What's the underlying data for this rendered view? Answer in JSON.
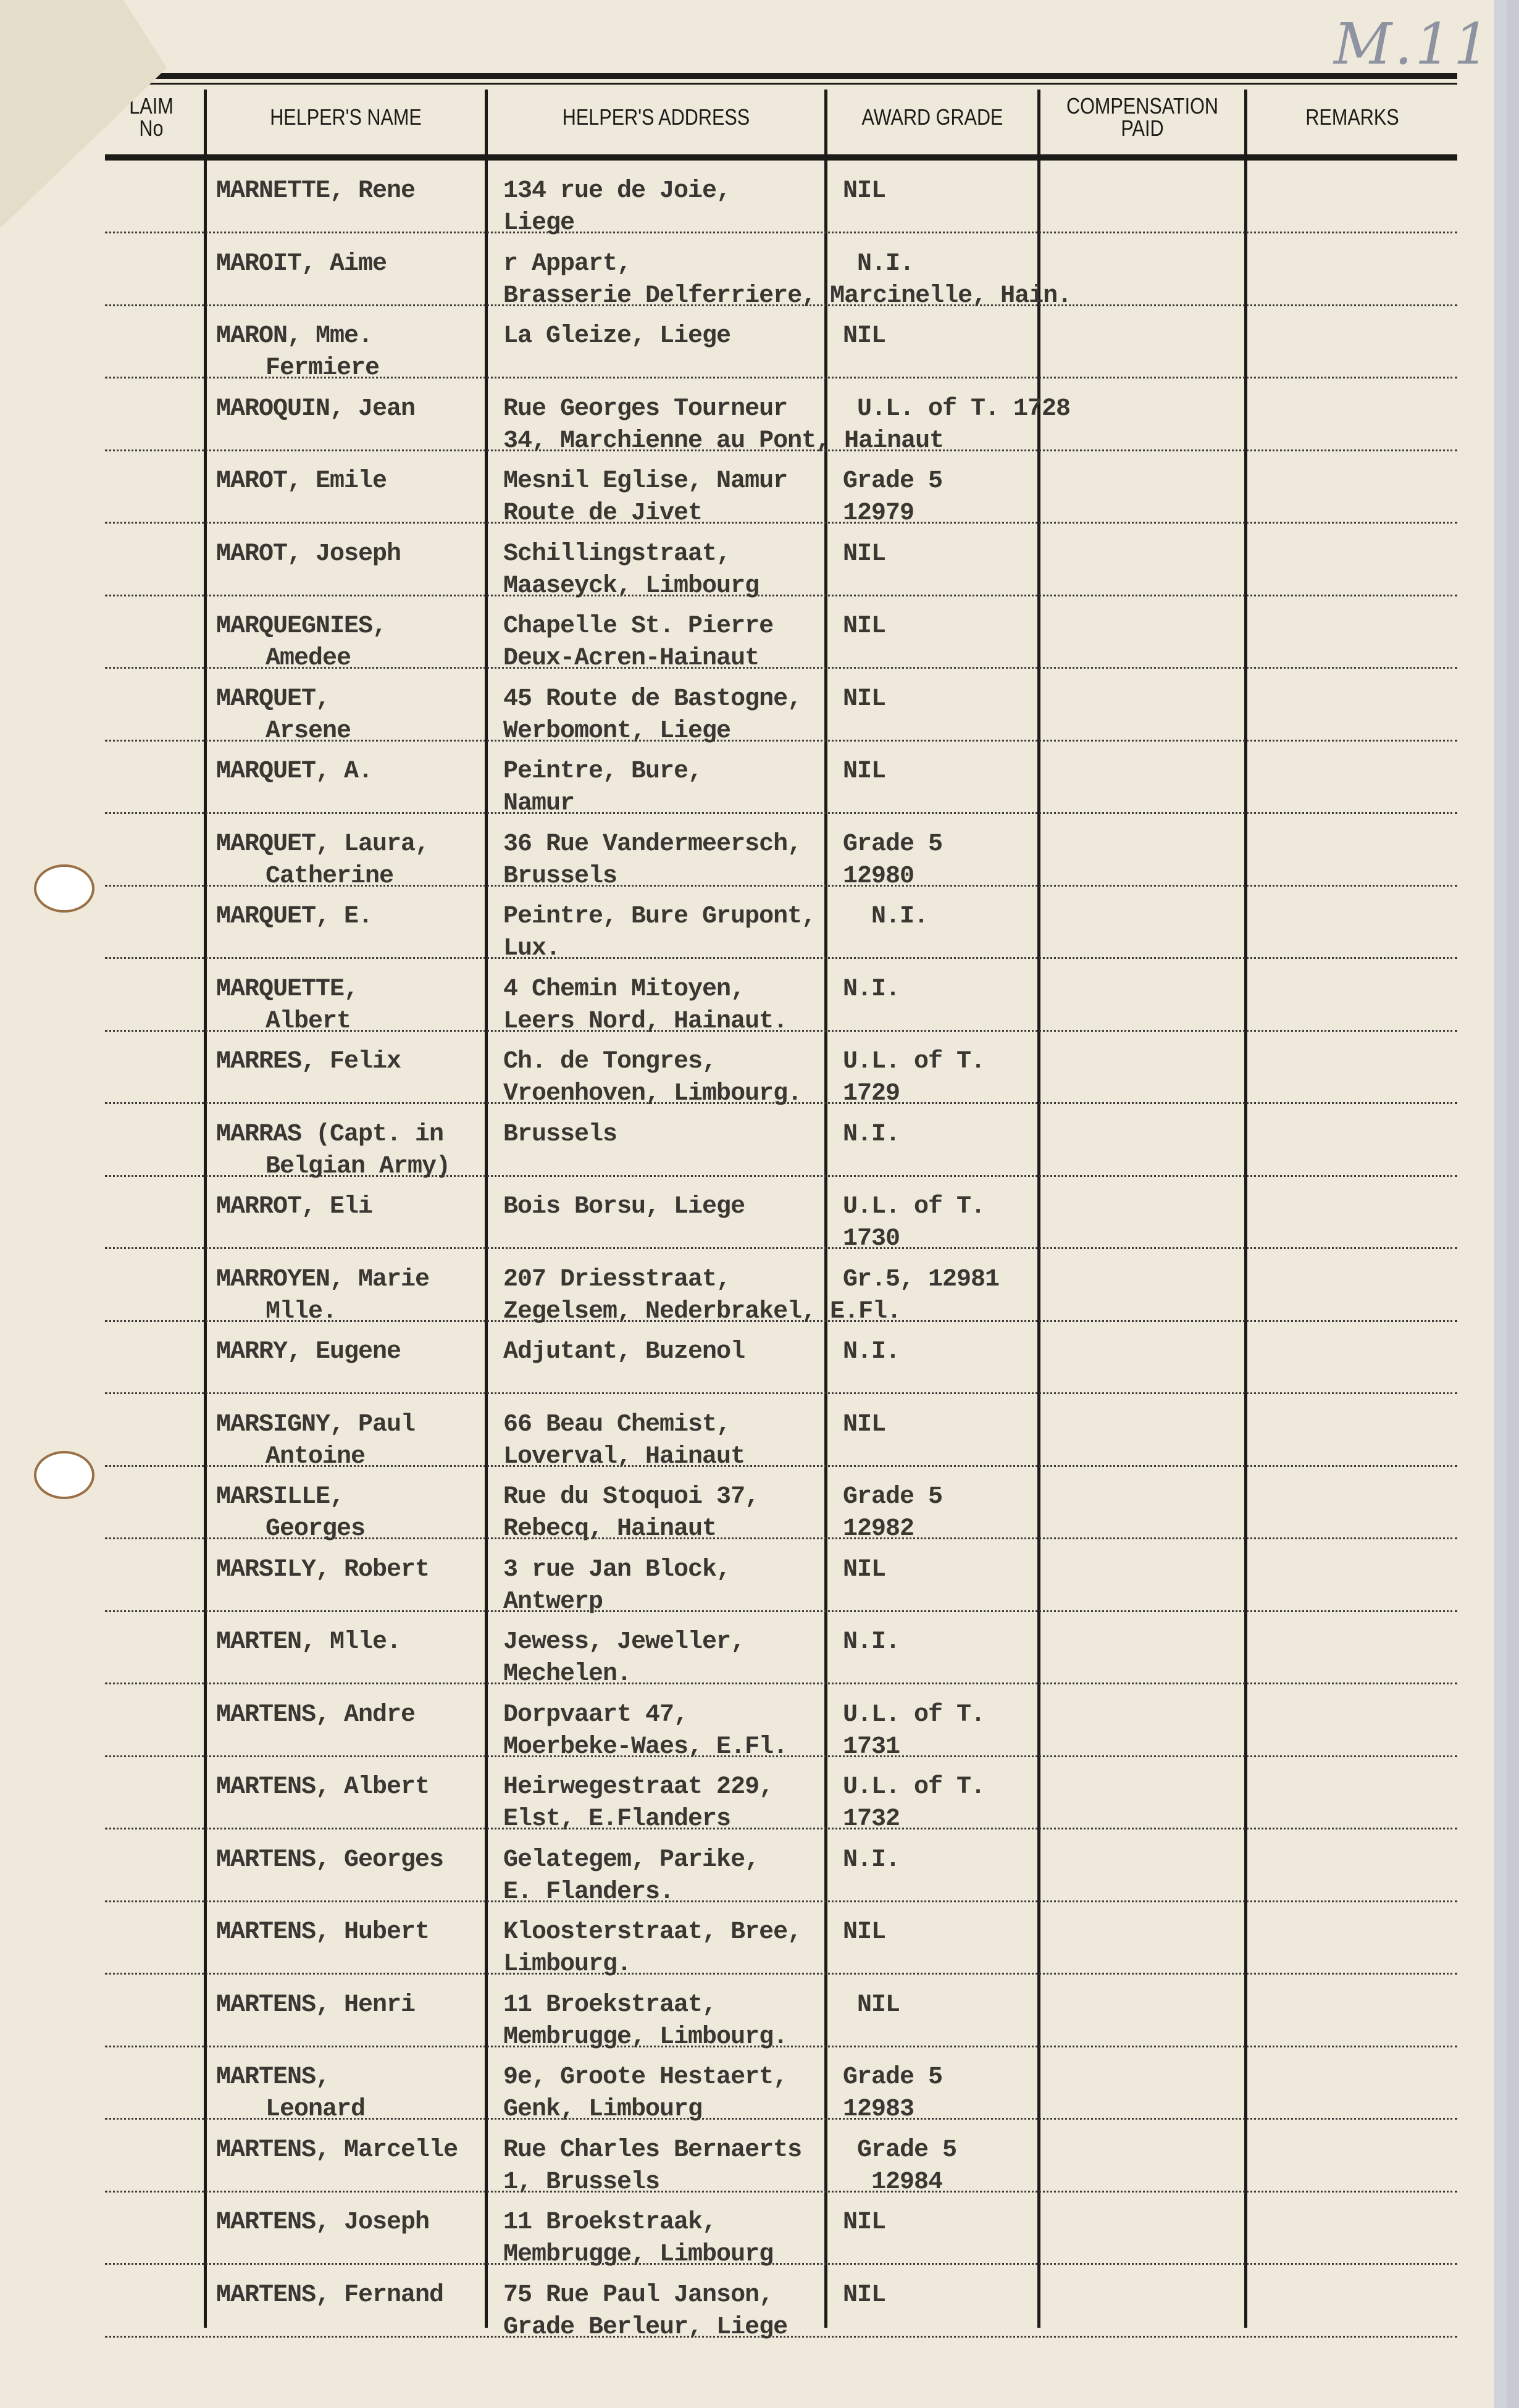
{
  "handwritten_mark": "M.11",
  "columns": {
    "claim": "LAIM\nNo",
    "name": "HELPER'S NAME",
    "address": "HELPER'S ADDRESS",
    "award": "AWARD GRADE",
    "compensation": "COMPENSATION\nPAID",
    "remarks": "REMARKS"
  },
  "rows": [
    {
      "name": [
        "MARNETTE, Rene"
      ],
      "address": [
        "134 rue de Joie,",
        "Liege"
      ],
      "award": [
        "NIL"
      ]
    },
    {
      "name": [
        "MAROIT, Aime"
      ],
      "address": [
        "r Appart,",
        "Brasserie Delferriere, Marcinelle, Hain."
      ],
      "award": [
        " N.I."
      ]
    },
    {
      "name": [
        "MARON, Mme.",
        "Fermiere"
      ],
      "address": [
        "La Gleize, Liege"
      ],
      "award": [
        "NIL"
      ]
    },
    {
      "name": [
        "MAROQUIN, Jean"
      ],
      "address": [
        "Rue Georges Tourneur",
        "34, Marchienne au Pont, Hainaut"
      ],
      "award": [
        " U.L. of T. 1728"
      ]
    },
    {
      "name": [
        "MAROT, Emile"
      ],
      "address": [
        "Mesnil Eglise, Namur",
        "Route de Jivet"
      ],
      "award": [
        "Grade 5",
        "12979"
      ]
    },
    {
      "name": [
        "MAROT, Joseph"
      ],
      "address": [
        "Schillingstraat,",
        "Maaseyck, Limbourg"
      ],
      "award": [
        "NIL"
      ]
    },
    {
      "name": [
        "MARQUEGNIES,",
        "Amedee"
      ],
      "address": [
        "Chapelle St. Pierre",
        "Deux-Acren-Hainaut"
      ],
      "award": [
        "NIL"
      ]
    },
    {
      "name": [
        "MARQUET,",
        "Arsene"
      ],
      "address": [
        "45 Route de Bastogne,",
        "Werbomont, Liege"
      ],
      "award": [
        "NIL"
      ]
    },
    {
      "name": [
        "MARQUET, A."
      ],
      "address": [
        "Peintre, Bure,",
        "Namur"
      ],
      "award": [
        "NIL"
      ]
    },
    {
      "name": [
        "MARQUET, Laura,",
        "Catherine"
      ],
      "address": [
        "36 Rue Vandermeersch,",
        "Brussels"
      ],
      "award": [
        "Grade 5",
        "12980"
      ]
    },
    {
      "name": [
        "MARQUET, E."
      ],
      "address": [
        "Peintre, Bure Grupont,",
        "Lux."
      ],
      "award": [
        "  N.I."
      ]
    },
    {
      "name": [
        "MARQUETTE,",
        "Albert"
      ],
      "address": [
        "4 Chemin Mitoyen,",
        "Leers Nord, Hainaut."
      ],
      "award": [
        "N.I."
      ]
    },
    {
      "name": [
        "MARRES, Felix"
      ],
      "address": [
        "Ch. de Tongres,",
        "Vroenhoven, Limbourg."
      ],
      "award": [
        "U.L. of T.",
        "1729"
      ]
    },
    {
      "name": [
        "MARRAS (Capt. in",
        "Belgian Army)"
      ],
      "address": [
        "Brussels"
      ],
      "award": [
        "N.I."
      ]
    },
    {
      "name": [
        "MARROT, Eli"
      ],
      "address": [
        "Bois Borsu, Liege"
      ],
      "award": [
        "U.L. of T.",
        "1730"
      ]
    },
    {
      "name": [
        "MARROYEN, Marie",
        "Mlle."
      ],
      "address": [
        "207 Driesstraat,",
        "Zegelsem, Nederbrakel, E.Fl."
      ],
      "award": [
        "Gr.5, 12981"
      ]
    },
    {
      "name": [
        "MARRY, Eugene"
      ],
      "address": [
        "Adjutant, Buzenol"
      ],
      "award": [
        "N.I."
      ]
    },
    {
      "name": [
        "MARSIGNY, Paul",
        "Antoine"
      ],
      "address": [
        "66 Beau Chemist,",
        "Loverval, Hainaut"
      ],
      "award": [
        "NIL"
      ]
    },
    {
      "name": [
        "MARSILLE,",
        "Georges"
      ],
      "address": [
        "Rue du Stoquoi 37,",
        "Rebecq, Hainaut"
      ],
      "award": [
        "Grade 5",
        "12982"
      ]
    },
    {
      "name": [
        "MARSILY, Robert"
      ],
      "address": [
        "3 rue Jan Block,",
        "Antwerp"
      ],
      "award": [
        "NIL"
      ]
    },
    {
      "name": [
        "MARTEN, Mlle."
      ],
      "address": [
        "Jewess, Jeweller,",
        "Mechelen."
      ],
      "award": [
        "N.I."
      ]
    },
    {
      "name": [
        "MARTENS, Andre"
      ],
      "address": [
        "Dorpvaart 47,",
        "Moerbeke-Waes, E.Fl."
      ],
      "award": [
        "U.L. of T.",
        "1731"
      ]
    },
    {
      "name": [
        "MARTENS, Albert"
      ],
      "address": [
        "Heirwegestraat 229,",
        "Elst, E.Flanders"
      ],
      "award": [
        "U.L. of T.",
        "1732"
      ]
    },
    {
      "name": [
        "MARTENS, Georges"
      ],
      "address": [
        "Gelategem, Parike,",
        "E. Flanders."
      ],
      "award": [
        "N.I."
      ]
    },
    {
      "name": [
        "MARTENS, Hubert"
      ],
      "address": [
        "Kloosterstraat, Bree,",
        "Limbourg."
      ],
      "award": [
        "NIL"
      ]
    },
    {
      "name": [
        "MARTENS, Henri"
      ],
      "address": [
        "11 Broekstraat,",
        "Membrugge, Limbourg."
      ],
      "award": [
        " NIL"
      ]
    },
    {
      "name": [
        "MARTENS,",
        "Leonard"
      ],
      "address": [
        "9e, Groote Hestaert,",
        "Genk, Limbourg"
      ],
      "award": [
        "Grade 5",
        "12983"
      ]
    },
    {
      "name": [
        "MARTENS, Marcelle"
      ],
      "address": [
        "Rue Charles Bernaerts",
        "1, Brussels"
      ],
      "award": [
        " Grade 5",
        "  12984"
      ]
    },
    {
      "name": [
        "MARTENS, Joseph"
      ],
      "address": [
        "11 Broekstraak,",
        "Membrugge, Limbourg"
      ],
      "award": [
        "",
        "NIL"
      ]
    },
    {
      "name": [
        "MARTENS, Fernand"
      ],
      "address": [
        "75 Rue Paul Janson,",
        "Grade Berleur, Liege"
      ],
      "award": [
        "",
        "NIL"
      ]
    }
  ]
}
